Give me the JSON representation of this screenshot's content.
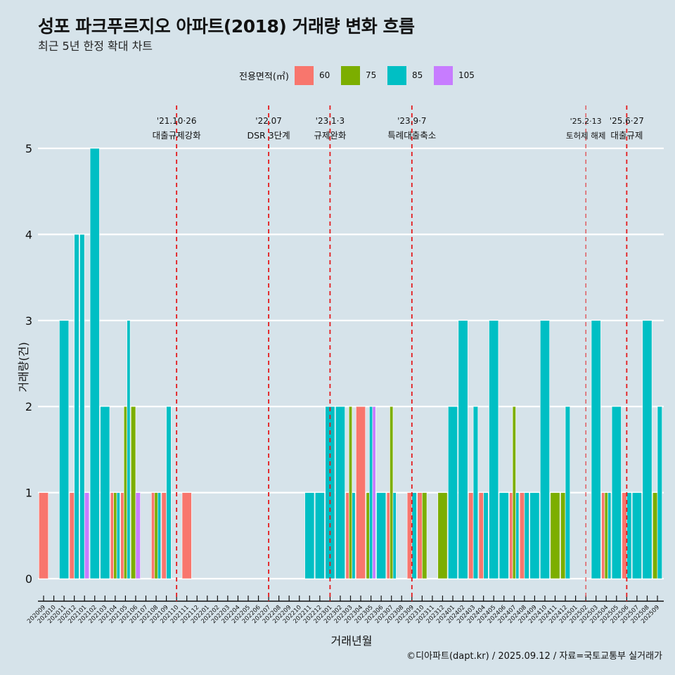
{
  "header": {
    "title": "성포 파크푸르지오 아파트(2018) 거래량 변화 흐름",
    "subtitle": "최근 5년 한정 확대 차트"
  },
  "footer": "©디아파트(dapt.kr) / 2025.09.12 / 자료=국토교통부 실거래가",
  "chart_data": {
    "type": "bar",
    "barmode": "dodge",
    "title": "성포 파크푸르지오 아파트(2018) 거래량 변화 흐름",
    "subtitle": "최근 5년 한정 확대 차트",
    "xlabel": "거래년월",
    "ylabel": "거래량(건)",
    "ylim": [
      0,
      5
    ],
    "yticks": [
      0,
      1,
      2,
      3,
      4,
      5
    ],
    "grid": true,
    "legend": {
      "title": "전용면적(㎡)",
      "placement": "top",
      "entries": [
        {
          "name": "60",
          "color": "#F8766D"
        },
        {
          "name": "75",
          "color": "#7CAE00"
        },
        {
          "name": "85",
          "color": "#00BFC4"
        },
        {
          "name": "105",
          "color": "#C77CFF"
        }
      ]
    },
    "categories": [
      "202009",
      "202010",
      "202011",
      "202012",
      "202101",
      "202102",
      "202103",
      "202104",
      "202105",
      "202106",
      "202107",
      "202108",
      "202109",
      "202110",
      "202111",
      "202112",
      "202201",
      "202202",
      "202203",
      "202204",
      "202205",
      "202206",
      "202207",
      "202208",
      "202209",
      "202210",
      "202211",
      "202212",
      "202301",
      "202302",
      "202303",
      "202304",
      "202305",
      "202306",
      "202307",
      "202308",
      "202309",
      "202310",
      "202311",
      "202312",
      "202401",
      "202402",
      "202403",
      "202404",
      "202405",
      "202406",
      "202407",
      "202408",
      "202409",
      "202410",
      "202411",
      "202412",
      "202501",
      "202502",
      "202503",
      "202504",
      "202505",
      "202506",
      "202507",
      "202508",
      "202509"
    ],
    "series": [
      {
        "name": "60",
        "values": [
          1,
          0,
          0,
          1,
          0,
          0,
          0,
          1,
          1,
          0,
          0,
          1,
          1,
          0,
          1,
          0,
          0,
          0,
          0,
          0,
          0,
          0,
          0,
          0,
          0,
          0,
          0,
          0,
          0,
          0,
          1,
          2,
          0,
          0,
          1,
          0,
          1,
          1,
          0,
          0,
          0,
          0,
          1,
          1,
          0,
          0,
          1,
          1,
          0,
          0,
          0,
          0,
          0,
          0,
          0,
          1,
          0,
          1,
          0,
          0,
          0
        ]
      },
      {
        "name": "75",
        "values": [
          0,
          0,
          0,
          0,
          0,
          0,
          0,
          1,
          2,
          2,
          0,
          1,
          0,
          0,
          0,
          0,
          0,
          0,
          0,
          0,
          0,
          0,
          0,
          0,
          0,
          0,
          0,
          0,
          0,
          0,
          2,
          0,
          1,
          0,
          2,
          0,
          0,
          1,
          0,
          1,
          0,
          0,
          0,
          0,
          0,
          0,
          2,
          0,
          0,
          0,
          1,
          1,
          0,
          0,
          0,
          1,
          0,
          0,
          0,
          0,
          1
        ]
      },
      {
        "name": "85",
        "values": [
          0,
          0,
          3,
          4,
          4,
          5,
          2,
          1,
          3,
          0,
          0,
          1,
          2,
          0,
          0,
          0,
          0,
          0,
          0,
          0,
          0,
          0,
          0,
          0,
          0,
          0,
          1,
          1,
          2,
          2,
          1,
          0,
          2,
          1,
          1,
          0,
          1,
          0,
          0,
          0,
          2,
          3,
          2,
          1,
          3,
          1,
          1,
          1,
          1,
          3,
          0,
          2,
          0,
          0,
          3,
          1,
          2,
          1,
          1,
          3,
          2
        ]
      },
      {
        "name": "105",
        "values": [
          0,
          0,
          0,
          0,
          1,
          0,
          0,
          0,
          0,
          1,
          0,
          0,
          0,
          0,
          0,
          0,
          0,
          0,
          0,
          0,
          0,
          0,
          0,
          0,
          0,
          0,
          0,
          0,
          0,
          0,
          0,
          0,
          2,
          0,
          0,
          0,
          0,
          0,
          0,
          0,
          0,
          0,
          0,
          0,
          0,
          0,
          0,
          0,
          0,
          0,
          0,
          0,
          0,
          0,
          0,
          0,
          0,
          0,
          0,
          0,
          0
        ]
      }
    ],
    "events": [
      {
        "month": "202110",
        "date": "'21.10·26",
        "label": "대출규제강화",
        "style": "bold"
      },
      {
        "month": "202207",
        "date": "'22.07",
        "label": "DSR 3단계",
        "style": "bold"
      },
      {
        "month": "202301",
        "date": "'23.1·3",
        "label": "규제완화",
        "style": "bold"
      },
      {
        "month": "202309",
        "date": "'23.9·7",
        "label": "특례대출축소",
        "style": "bold"
      },
      {
        "month": "202502",
        "date": "'25.2·13",
        "label": "토허제 해제",
        "style": "thin"
      },
      {
        "month": "202506",
        "date": "'25.6·27",
        "label": "대출규제",
        "style": "bold"
      }
    ],
    "event_color": "#E41A1C"
  }
}
